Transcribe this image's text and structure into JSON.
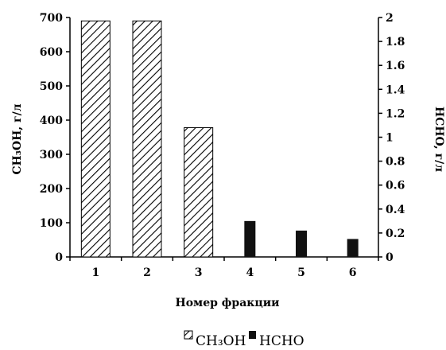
{
  "chart_data": {
    "type": "bar",
    "categories": [
      "1",
      "2",
      "3",
      "4",
      "5",
      "6"
    ],
    "xlabel": "Номер фракции",
    "left_axis": {
      "label": "CH₃OH, г/л",
      "ylim": [
        0,
        700
      ],
      "ticks": [
        "0",
        "100",
        "200",
        "300",
        "400",
        "500",
        "600",
        "700"
      ]
    },
    "right_axis": {
      "label": "HCHO, г/л",
      "ylim": [
        0,
        2
      ],
      "ticks": [
        "0",
        "0.2",
        "0.4",
        "0.6",
        "0.8",
        "1",
        "1.2",
        "1.4",
        "1.6",
        "1.8",
        "2"
      ]
    },
    "series": [
      {
        "name": "CH₃OH",
        "axis": "left",
        "fill": "hatch",
        "values": [
          690,
          690,
          378,
          null,
          null,
          null
        ]
      },
      {
        "name": "HCHO",
        "axis": "right",
        "fill": "solid",
        "values": [
          null,
          null,
          null,
          0.3,
          0.22,
          0.15
        ]
      }
    ],
    "legend": {
      "placement": "bottom",
      "entries": [
        "CH₃OH",
        "HCHO"
      ]
    },
    "grid": false,
    "colors": {
      "bar_solid": "#111111",
      "hatch_line": "#000000",
      "axis": "#000000"
    }
  }
}
